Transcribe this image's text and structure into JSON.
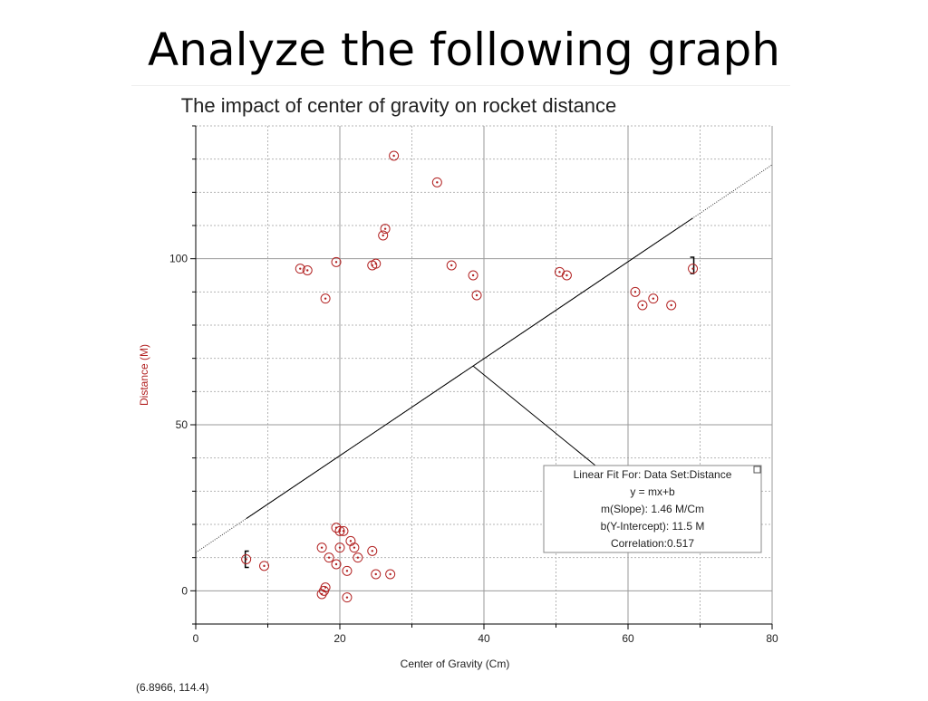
{
  "slide": {
    "title": "Analyze the following graph"
  },
  "chart_data": {
    "type": "scatter",
    "title": "The impact of center of gravity on rocket distance",
    "xlabel": "Center of Gravity (Cm)",
    "ylabel": "Distance (M)",
    "xlim": [
      0,
      80
    ],
    "ylim": [
      -10,
      140
    ],
    "x_ticks": [
      0,
      20,
      40,
      60,
      80
    ],
    "y_ticks": [
      0,
      50,
      100
    ],
    "grid": true,
    "series": [
      {
        "points": [
          [
            7,
            9.5
          ],
          [
            9.5,
            7.5
          ],
          [
            14.5,
            97
          ],
          [
            15.5,
            96.5
          ],
          [
            18,
            88
          ],
          [
            19.5,
            99
          ],
          [
            24.5,
            98
          ],
          [
            25,
            98.5
          ],
          [
            26,
            107
          ],
          [
            26.3,
            109
          ],
          [
            27.5,
            131
          ],
          [
            33.5,
            123
          ],
          [
            35.5,
            98
          ],
          [
            38.5,
            95
          ],
          [
            39,
            89
          ],
          [
            50.5,
            96
          ],
          [
            51.5,
            95
          ],
          [
            61,
            90
          ],
          [
            62,
            86
          ],
          [
            63.5,
            88
          ],
          [
            66,
            86
          ],
          [
            69,
            97
          ],
          [
            17.5,
            13
          ],
          [
            19.5,
            19
          ],
          [
            20,
            18
          ],
          [
            20.5,
            18
          ],
          [
            20,
            13
          ],
          [
            21.5,
            15
          ],
          [
            22,
            13
          ],
          [
            24.5,
            12
          ],
          [
            18.5,
            10
          ],
          [
            22.5,
            10
          ],
          [
            19.5,
            8
          ],
          [
            21,
            6
          ],
          [
            25,
            5
          ],
          [
            27,
            5
          ],
          [
            18,
            1
          ],
          [
            17.8,
            0
          ],
          [
            17.5,
            -1
          ],
          [
            21,
            -2
          ]
        ],
        "color": "#b22222"
      }
    ],
    "fit": {
      "slope": 1.46,
      "intercept": 11.5,
      "x_range": [
        0,
        80
      ],
      "bracket_left_x": 7,
      "bracket_right_x": 69,
      "callout_anchor": [
        38.5,
        67.7
      ]
    },
    "fit_box": {
      "lines": [
        "Linear Fit For:  Data Set:Distance",
        "y = mx+b",
        "m(Slope): 1.46 M/Cm",
        "b(Y-Intercept): 11.5 M",
        "Correlation:0.517"
      ]
    },
    "cursor_readout": "(6.8966, 114.4)",
    "colors": {
      "point": "#b22222",
      "ylabel": "#b22222",
      "axis": "#000000",
      "grid": "#9a9a9a"
    }
  }
}
